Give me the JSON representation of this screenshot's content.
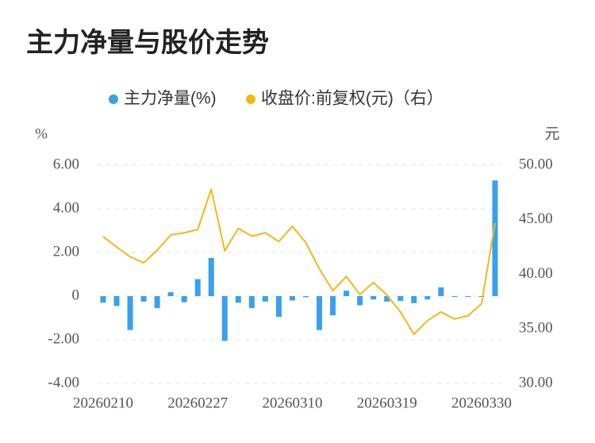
{
  "chart_data": {
    "type": "bar-line",
    "title": "主力净量与股价走势",
    "y_unit": "%",
    "y2_unit": "元",
    "categories": [
      "20260210",
      null,
      null,
      null,
      null,
      null,
      null,
      "20260227",
      null,
      null,
      null,
      null,
      null,
      null,
      "20260310",
      null,
      null,
      null,
      null,
      null,
      null,
      "20260319",
      null,
      null,
      null,
      null,
      null,
      null,
      "20260330",
      null
    ],
    "series": [
      {
        "name": "主力净量(%)",
        "type": "bar",
        "color": "#3aa0ee",
        "values": [
          -0.3,
          -0.45,
          -1.55,
          -0.25,
          -0.55,
          0.18,
          -0.28,
          0.78,
          1.75,
          -2.05,
          -0.3,
          -0.55,
          -0.25,
          -0.95,
          -0.2,
          -0.05,
          -1.55,
          -0.88,
          0.25,
          -0.42,
          -0.15,
          -0.25,
          -0.22,
          -0.32,
          -0.15,
          0.4,
          -0.03,
          -0.03,
          -0.02,
          5.3
        ]
      },
      {
        "name": "收盘价:前复权(元)（右）",
        "type": "line",
        "axis": "y2",
        "color": "#f3b817",
        "values": [
          43.45,
          42.5,
          41.6,
          41.05,
          42.2,
          43.6,
          43.8,
          44.1,
          47.8,
          42.15,
          44.2,
          43.5,
          43.8,
          43.0,
          44.4,
          42.9,
          40.5,
          38.5,
          39.8,
          38.15,
          39.25,
          38.1,
          36.55,
          34.5,
          35.75,
          36.55,
          35.9,
          36.2,
          37.3,
          44.7
        ]
      }
    ],
    "ylim": [
      -4,
      6
    ],
    "yticks": [
      {
        "value": -4,
        "label": "-4.00"
      },
      {
        "value": -2,
        "label": "-2.00"
      },
      0,
      {
        "value": 2,
        "label": "2.00"
      },
      {
        "value": 4,
        "label": "4.00"
      },
      {
        "value": 6,
        "label": "6.00"
      }
    ],
    "y2lim": [
      30,
      50
    ],
    "y2ticks": [
      {
        "value": 30,
        "label": "30.00"
      },
      {
        "value": 35,
        "label": "35.00"
      },
      {
        "value": 40,
        "label": "40.00"
      },
      {
        "value": 45,
        "label": "45.00"
      },
      {
        "value": 50,
        "label": "50.00"
      }
    ],
    "grid": true
  }
}
